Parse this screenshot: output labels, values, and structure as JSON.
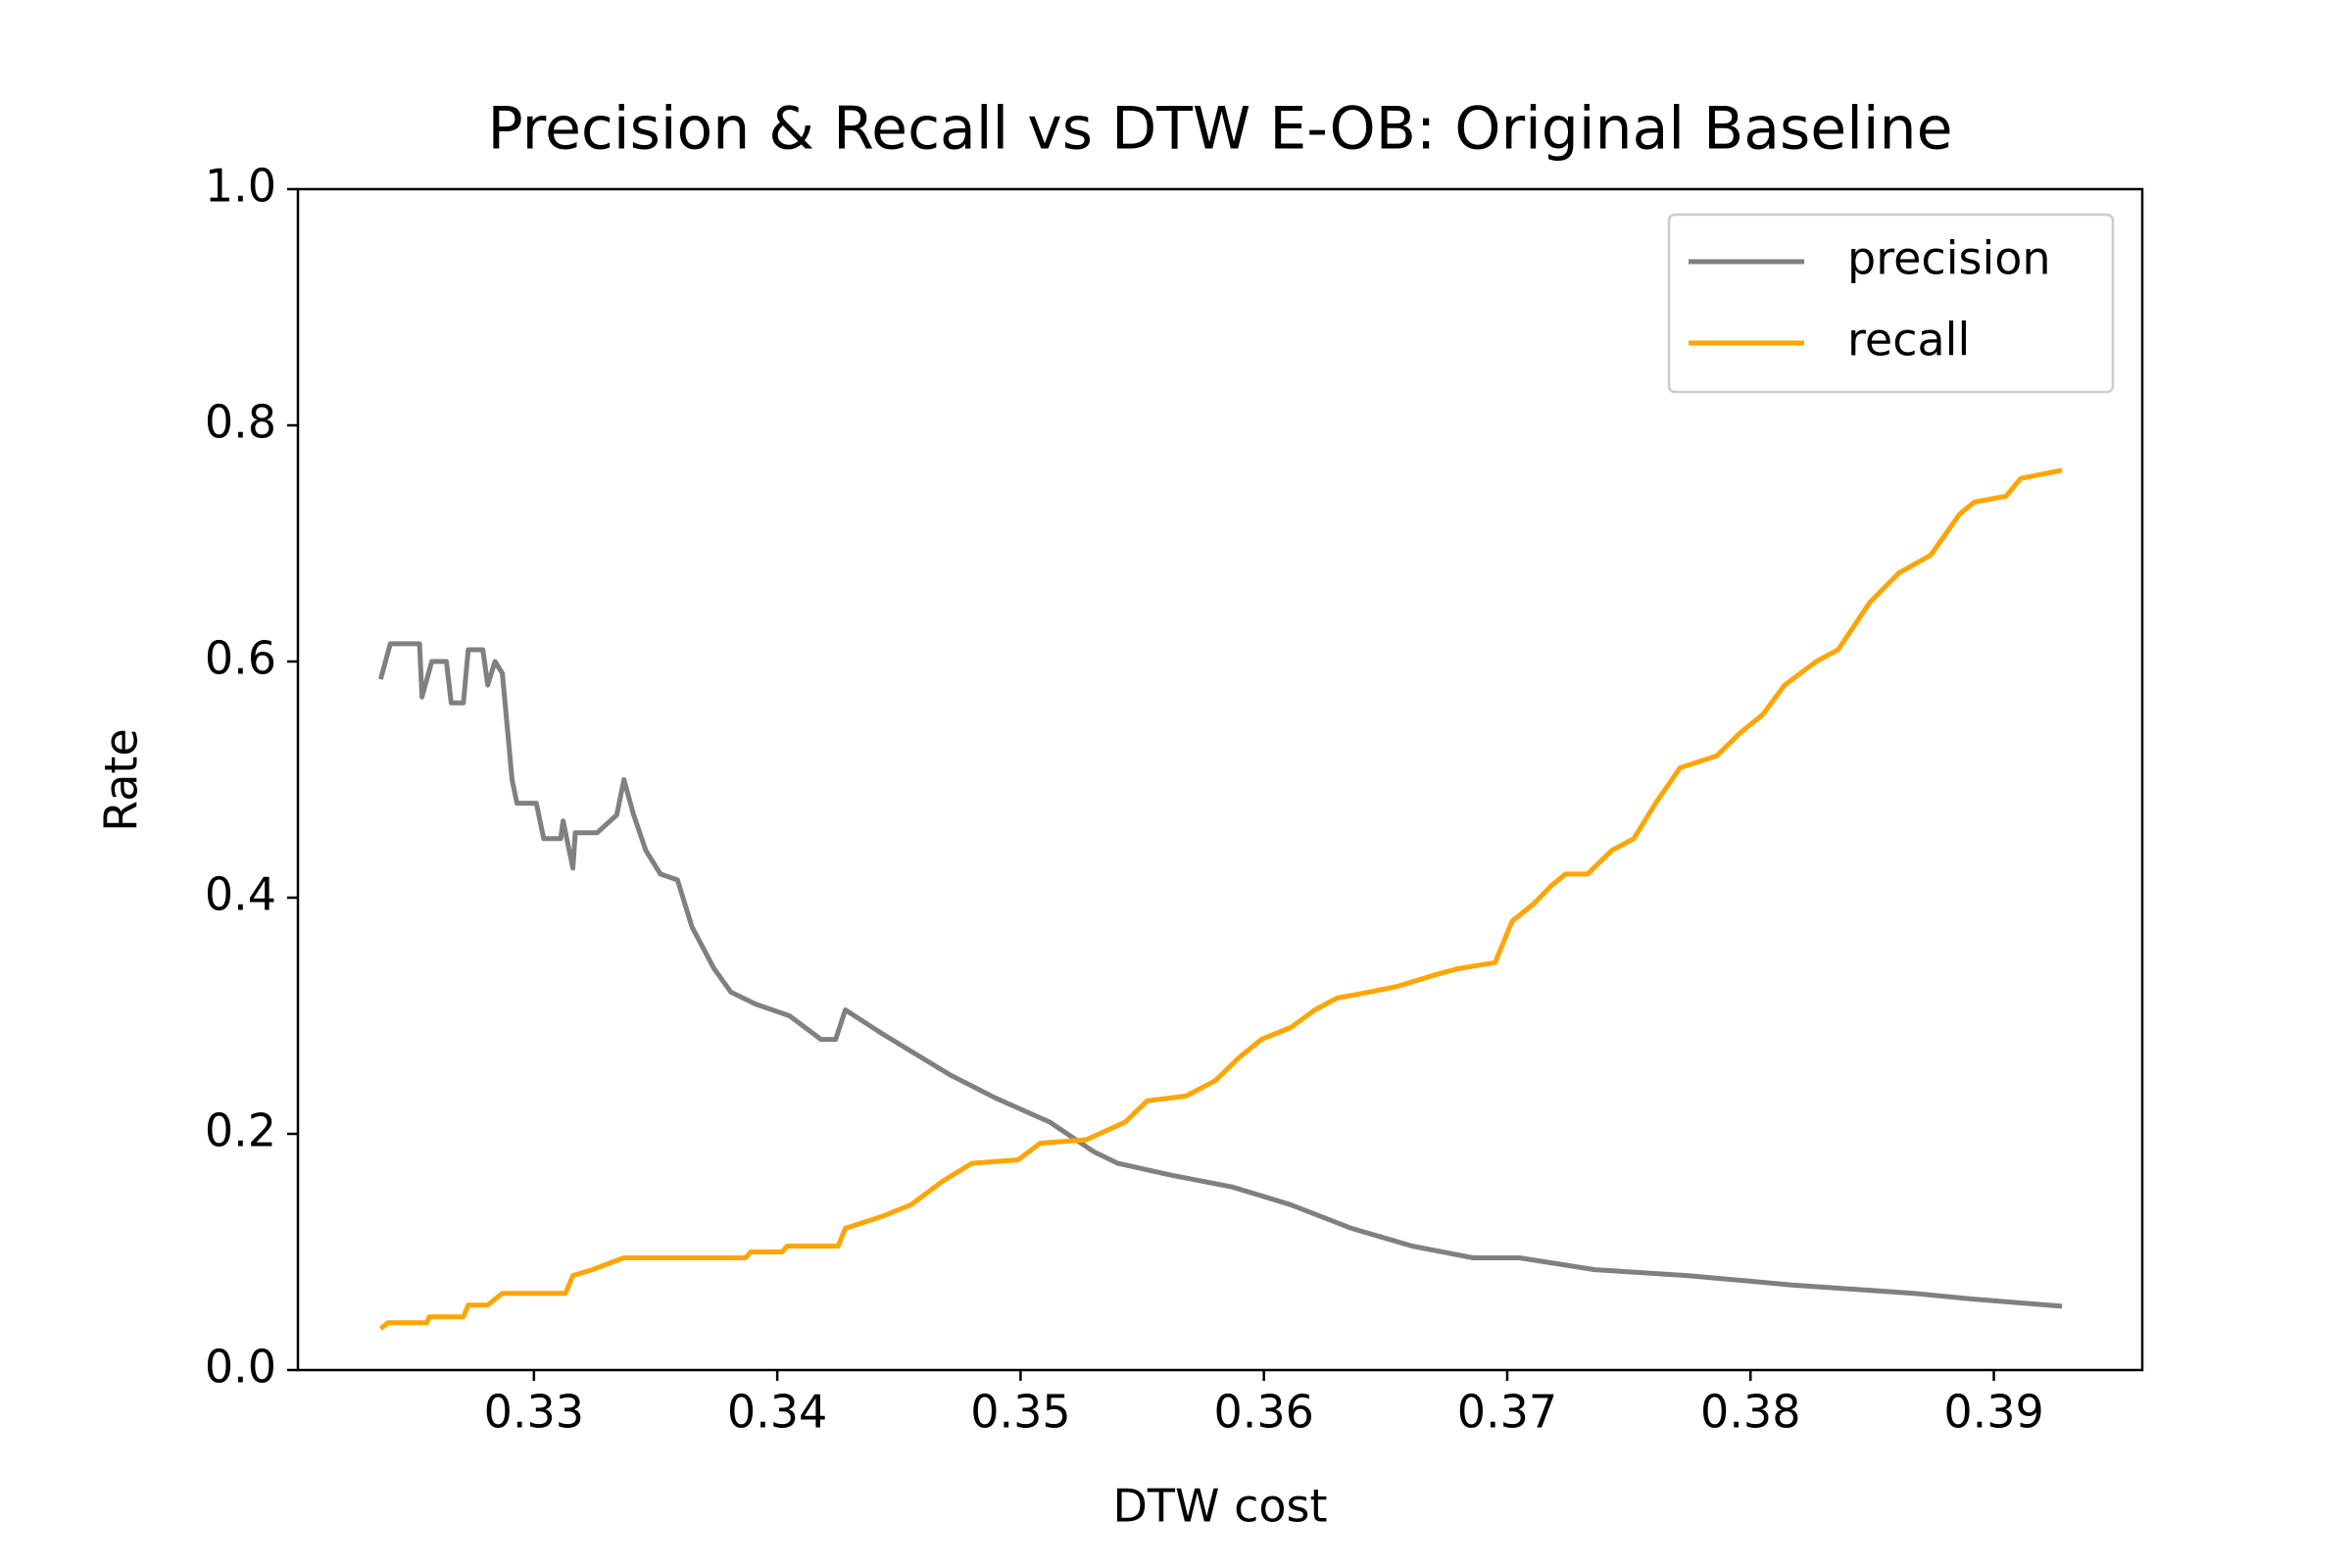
{
  "chart_data": {
    "type": "line",
    "title": "Precision & Recall vs DTW E-OB: Original Baseline",
    "x_label": "DTW cost",
    "y_label": "Rate",
    "xlim": [
      0.3203,
      0.3961
    ],
    "ylim": [
      0,
      1
    ],
    "xticks": [
      0.33,
      0.34,
      0.35,
      0.36,
      0.37,
      0.38,
      0.39
    ],
    "yticks": [
      {
        "value": 0,
        "label": "0.0"
      },
      0.2,
      0.4,
      0.6,
      0.8,
      {
        "value": 1,
        "label": "1.0"
      }
    ],
    "legend": "upper right",
    "series": [
      {
        "name": "precision",
        "color": "#808080",
        "x": [
          0.3237,
          0.3241,
          0.3253,
          0.3254,
          0.3258,
          0.3264,
          0.3266,
          0.3271,
          0.3273,
          0.3279,
          0.3281,
          0.3284,
          0.3287,
          0.3291,
          0.3293,
          0.3301,
          0.3304,
          0.3311,
          0.3312,
          0.3316,
          0.3317,
          0.3326,
          0.3334,
          0.3337,
          0.3341,
          0.3346,
          0.3352,
          0.3359,
          0.3365,
          0.3374,
          0.3381,
          0.3391,
          0.3405,
          0.3418,
          0.3424,
          0.3428,
          0.3443,
          0.3455,
          0.3471,
          0.349,
          0.3512,
          0.353,
          0.354,
          0.3562,
          0.3587,
          0.3611,
          0.3636,
          0.3661,
          0.3686,
          0.3705,
          0.3736,
          0.3774,
          0.3817,
          0.3867,
          0.3892,
          0.3928
        ],
        "values": [
          0.585,
          0.615,
          0.615,
          0.57,
          0.6,
          0.6,
          0.565,
          0.565,
          0.61,
          0.61,
          0.58,
          0.6,
          0.59,
          0.5,
          0.48,
          0.48,
          0.45,
          0.45,
          0.465,
          0.425,
          0.455,
          0.455,
          0.47,
          0.5,
          0.47,
          0.44,
          0.42,
          0.415,
          0.375,
          0.34,
          0.32,
          0.31,
          0.3,
          0.28,
          0.28,
          0.305,
          0.285,
          0.27,
          0.25,
          0.23,
          0.21,
          0.185,
          0.175,
          0.165,
          0.155,
          0.14,
          0.12,
          0.105,
          0.095,
          0.095,
          0.085,
          0.08,
          0.072,
          0.065,
          0.06,
          0.054
        ]
      },
      {
        "name": "recall",
        "color": "#ffa500",
        "x": [
          0.3237,
          0.324,
          0.3256,
          0.3257,
          0.3271,
          0.3273,
          0.3281,
          0.3287,
          0.3313,
          0.3316,
          0.3324,
          0.3337,
          0.3387,
          0.3389,
          0.3402,
          0.3404,
          0.3425,
          0.3428,
          0.3443,
          0.3455,
          0.3468,
          0.348,
          0.3499,
          0.3508,
          0.3527,
          0.3543,
          0.3552,
          0.3568,
          0.358,
          0.359,
          0.3599,
          0.3611,
          0.3621,
          0.363,
          0.3643,
          0.3655,
          0.3671,
          0.368,
          0.3695,
          0.3702,
          0.3711,
          0.3718,
          0.3724,
          0.3733,
          0.3743,
          0.3752,
          0.3761,
          0.3771,
          0.3786,
          0.3796,
          0.3805,
          0.3814,
          0.3827,
          0.3836,
          0.3849,
          0.3861,
          0.3874,
          0.3886,
          0.3892,
          0.3905,
          0.3911,
          0.3928
        ],
        "values": [
          0.035,
          0.04,
          0.04,
          0.045,
          0.045,
          0.055,
          0.055,
          0.065,
          0.065,
          0.08,
          0.085,
          0.095,
          0.095,
          0.1,
          0.1,
          0.105,
          0.105,
          0.12,
          0.13,
          0.14,
          0.16,
          0.175,
          0.178,
          0.192,
          0.195,
          0.21,
          0.228,
          0.232,
          0.245,
          0.265,
          0.28,
          0.29,
          0.305,
          0.315,
          0.32,
          0.325,
          0.335,
          0.34,
          0.345,
          0.38,
          0.395,
          0.41,
          0.42,
          0.42,
          0.44,
          0.45,
          0.48,
          0.51,
          0.52,
          0.54,
          0.555,
          0.58,
          0.6,
          0.61,
          0.65,
          0.675,
          0.69,
          0.725,
          0.735,
          0.74,
          0.755,
          0.762
        ]
      }
    ]
  }
}
